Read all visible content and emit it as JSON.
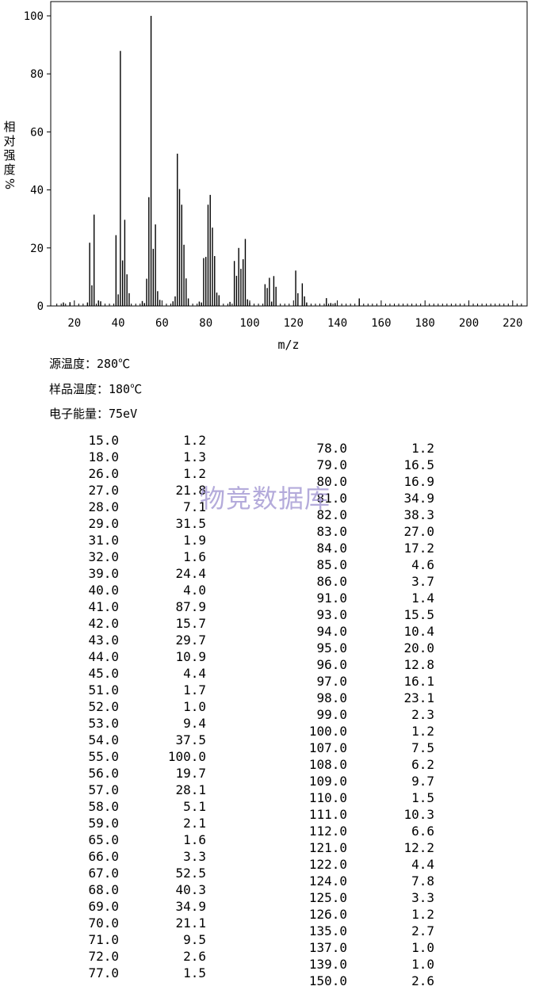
{
  "chart_data": {
    "type": "bar",
    "xlabel": "m/z",
    "ylabel": "相对强度%",
    "ylabel_chars": [
      "相",
      "对",
      "强",
      "度",
      "%"
    ],
    "xlim": [
      10,
      225
    ],
    "ylim": [
      0,
      105
    ],
    "xticks": [
      20,
      40,
      60,
      80,
      100,
      120,
      140,
      160,
      180,
      200,
      220
    ],
    "yticks": [
      0,
      20,
      40,
      60,
      80,
      100
    ],
    "grid": false,
    "peaks": [
      [
        15,
        1.2
      ],
      [
        18,
        1.3
      ],
      [
        26,
        1.2
      ],
      [
        27,
        21.8
      ],
      [
        28,
        7.1
      ],
      [
        29,
        31.5
      ],
      [
        31,
        1.9
      ],
      [
        32,
        1.6
      ],
      [
        39,
        24.4
      ],
      [
        40,
        4.0
      ],
      [
        41,
        87.9
      ],
      [
        42,
        15.7
      ],
      [
        43,
        29.7
      ],
      [
        44,
        10.9
      ],
      [
        45,
        4.4
      ],
      [
        51,
        1.7
      ],
      [
        52,
        1.0
      ],
      [
        53,
        9.4
      ],
      [
        54,
        37.5
      ],
      [
        55,
        100.0
      ],
      [
        56,
        19.7
      ],
      [
        57,
        28.1
      ],
      [
        58,
        5.1
      ],
      [
        59,
        2.1
      ],
      [
        65,
        1.6
      ],
      [
        66,
        3.3
      ],
      [
        67,
        52.5
      ],
      [
        68,
        40.3
      ],
      [
        69,
        34.9
      ],
      [
        70,
        21.1
      ],
      [
        71,
        9.5
      ],
      [
        72,
        2.6
      ],
      [
        77,
        1.5
      ],
      [
        78,
        1.2
      ],
      [
        79,
        16.5
      ],
      [
        80,
        16.9
      ],
      [
        81,
        34.9
      ],
      [
        82,
        38.3
      ],
      [
        83,
        27.0
      ],
      [
        84,
        17.2
      ],
      [
        85,
        4.6
      ],
      [
        86,
        3.7
      ],
      [
        91,
        1.4
      ],
      [
        93,
        15.5
      ],
      [
        94,
        10.4
      ],
      [
        95,
        20.0
      ],
      [
        96,
        12.8
      ],
      [
        97,
        16.1
      ],
      [
        98,
        23.1
      ],
      [
        99,
        2.3
      ],
      [
        100,
        1.2
      ],
      [
        107,
        7.5
      ],
      [
        108,
        6.2
      ],
      [
        109,
        9.7
      ],
      [
        110,
        1.5
      ],
      [
        111,
        10.3
      ],
      [
        112,
        6.6
      ],
      [
        121,
        12.2
      ],
      [
        122,
        4.4
      ],
      [
        124,
        7.8
      ],
      [
        125,
        3.3
      ],
      [
        126,
        1.2
      ],
      [
        135,
        2.7
      ],
      [
        137,
        1.0
      ],
      [
        139,
        1.0
      ],
      [
        150,
        2.6
      ]
    ]
  },
  "conditions": {
    "source_temp": "源温度：280℃",
    "sample_temp": "样品温度：180℃",
    "electron_energy": "电子能量：75eV"
  },
  "watermark": "物竞数据库",
  "table": {
    "col1": [
      [
        "15.0",
        "1.2"
      ],
      [
        "18.0",
        "1.3"
      ],
      [
        "26.0",
        "1.2"
      ],
      [
        "27.0",
        "21.8"
      ],
      [
        "28.0",
        "7.1"
      ],
      [
        "29.0",
        "31.5"
      ],
      [
        "31.0",
        "1.9"
      ],
      [
        "32.0",
        "1.6"
      ],
      [
        "39.0",
        "24.4"
      ],
      [
        "40.0",
        "4.0"
      ],
      [
        "41.0",
        "87.9"
      ],
      [
        "42.0",
        "15.7"
      ],
      [
        "43.0",
        "29.7"
      ],
      [
        "44.0",
        "10.9"
      ],
      [
        "45.0",
        "4.4"
      ],
      [
        "51.0",
        "1.7"
      ],
      [
        "52.0",
        "1.0"
      ],
      [
        "53.0",
        "9.4"
      ],
      [
        "54.0",
        "37.5"
      ],
      [
        "55.0",
        "100.0"
      ],
      [
        "56.0",
        "19.7"
      ],
      [
        "57.0",
        "28.1"
      ],
      [
        "58.0",
        "5.1"
      ],
      [
        "59.0",
        "2.1"
      ],
      [
        "65.0",
        "1.6"
      ],
      [
        "66.0",
        "3.3"
      ],
      [
        "67.0",
        "52.5"
      ],
      [
        "68.0",
        "40.3"
      ],
      [
        "69.0",
        "34.9"
      ],
      [
        "70.0",
        "21.1"
      ],
      [
        "71.0",
        "9.5"
      ],
      [
        "72.0",
        "2.6"
      ],
      [
        "77.0",
        "1.5"
      ]
    ],
    "col2": [
      [
        "78.0",
        "1.2"
      ],
      [
        "79.0",
        "16.5"
      ],
      [
        "80.0",
        "16.9"
      ],
      [
        "81.0",
        "34.9"
      ],
      [
        "82.0",
        "38.3"
      ],
      [
        "83.0",
        "27.0"
      ],
      [
        "84.0",
        "17.2"
      ],
      [
        "85.0",
        "4.6"
      ],
      [
        "86.0",
        "3.7"
      ],
      [
        "91.0",
        "1.4"
      ],
      [
        "93.0",
        "15.5"
      ],
      [
        "94.0",
        "10.4"
      ],
      [
        "95.0",
        "20.0"
      ],
      [
        "96.0",
        "12.8"
      ],
      [
        "97.0",
        "16.1"
      ],
      [
        "98.0",
        "23.1"
      ],
      [
        "99.0",
        "2.3"
      ],
      [
        "100.0",
        "1.2"
      ],
      [
        "107.0",
        "7.5"
      ],
      [
        "108.0",
        "6.2"
      ],
      [
        "109.0",
        "9.7"
      ],
      [
        "110.0",
        "1.5"
      ],
      [
        "111.0",
        "10.3"
      ],
      [
        "112.0",
        "6.6"
      ],
      [
        "121.0",
        "12.2"
      ],
      [
        "122.0",
        "4.4"
      ],
      [
        "124.0",
        "7.8"
      ],
      [
        "125.0",
        "3.3"
      ],
      [
        "126.0",
        "1.2"
      ],
      [
        "135.0",
        "2.7"
      ],
      [
        "137.0",
        "1.0"
      ],
      [
        "139.0",
        "1.0"
      ],
      [
        "150.0",
        "2.6"
      ]
    ]
  }
}
